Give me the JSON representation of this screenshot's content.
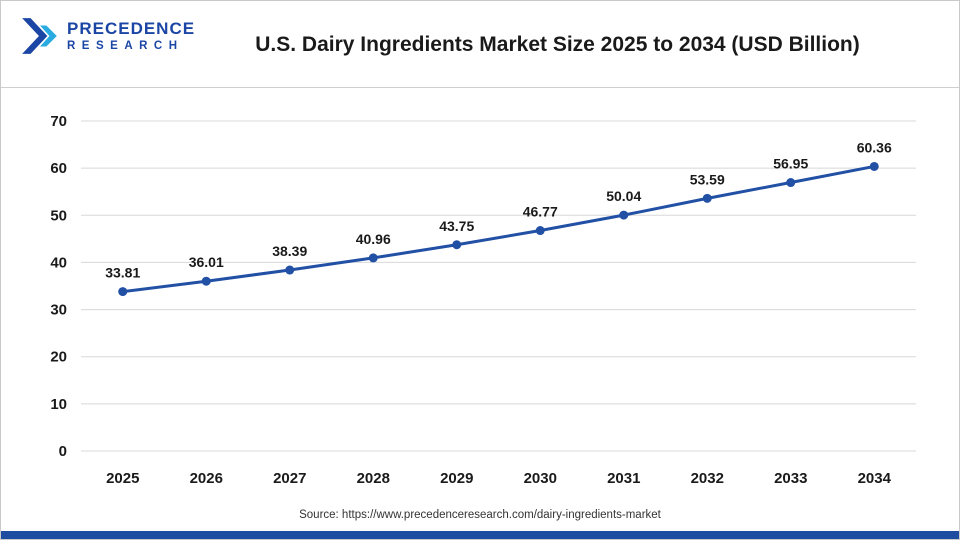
{
  "header": {
    "logo": {
      "line1": "PRECEDENCE",
      "line2": "RESEARCH"
    },
    "title": "U.S. Dairy Ingredients Market Size 2025 to 2034 (USD Billion)"
  },
  "source": "Source: https://www.precedenceresearch.com/dairy-ingredients-market",
  "colors": {
    "line": "#2150a5",
    "marker": "#2150a5",
    "grid": "#d8d8d8",
    "label": "#1a1a1a",
    "accent_bar": "#1e4ca1",
    "logo_blue": "#1b46a5",
    "logo_cyan": "#29abe2"
  },
  "chart_data": {
    "type": "line",
    "title": "U.S. Dairy Ingredients Market Size 2025 to 2034 (USD Billion)",
    "categories": [
      "2025",
      "2026",
      "2027",
      "2028",
      "2029",
      "2030",
      "2031",
      "2032",
      "2033",
      "2034"
    ],
    "values": [
      33.81,
      36.01,
      38.39,
      40.96,
      43.75,
      46.77,
      50.04,
      53.59,
      56.95,
      60.36
    ],
    "xlabel": "",
    "ylabel": "",
    "ylim": [
      0,
      70
    ],
    "yticks": [
      0,
      10,
      20,
      30,
      40,
      50,
      60,
      70
    ],
    "grid": true,
    "legend": "none",
    "marker": "circle",
    "data_labels": true
  }
}
